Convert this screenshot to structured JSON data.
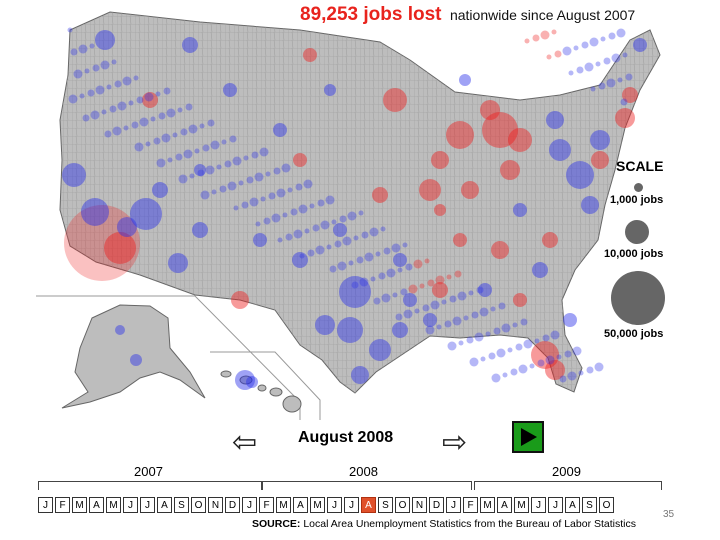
{
  "headline": {
    "big": "89,253 jobs lost",
    "rest": "nationwide since August 2007"
  },
  "scale": {
    "title": "SCALE",
    "items": [
      {
        "label": "1,000 jobs",
        "jobs": 1000
      },
      {
        "label": "10,000 jobs",
        "jobs": 10000
      },
      {
        "label": "50,000 jobs",
        "jobs": 50000
      }
    ]
  },
  "colors": {
    "loss": "#ee2020",
    "gain": "#2a30e8",
    "land": "#bdbdbd",
    "play": "#1a9b1a",
    "active_month": "#e0502a"
  },
  "icons": {
    "prev": "left-arrow-icon",
    "next": "right-arrow-icon",
    "play": "play-icon"
  },
  "timeline": {
    "current": "August 2008",
    "years": [
      "2007",
      "2008",
      "2009"
    ],
    "months": [
      "J",
      "F",
      "M",
      "A",
      "M",
      "J",
      "J",
      "A",
      "S",
      "O",
      "N",
      "D",
      "J",
      "F",
      "M",
      "A",
      "M",
      "J",
      "J",
      "A",
      "S",
      "O",
      "N",
      "D",
      "J",
      "F",
      "M",
      "A",
      "M",
      "J",
      "J",
      "A",
      "S",
      "O"
    ],
    "active_index": 19
  },
  "source": {
    "label": "SOURCE:",
    "text": "Local Area Unemployment Statistics from the Bureau of Labor Statistics"
  },
  "page_number": "35"
}
